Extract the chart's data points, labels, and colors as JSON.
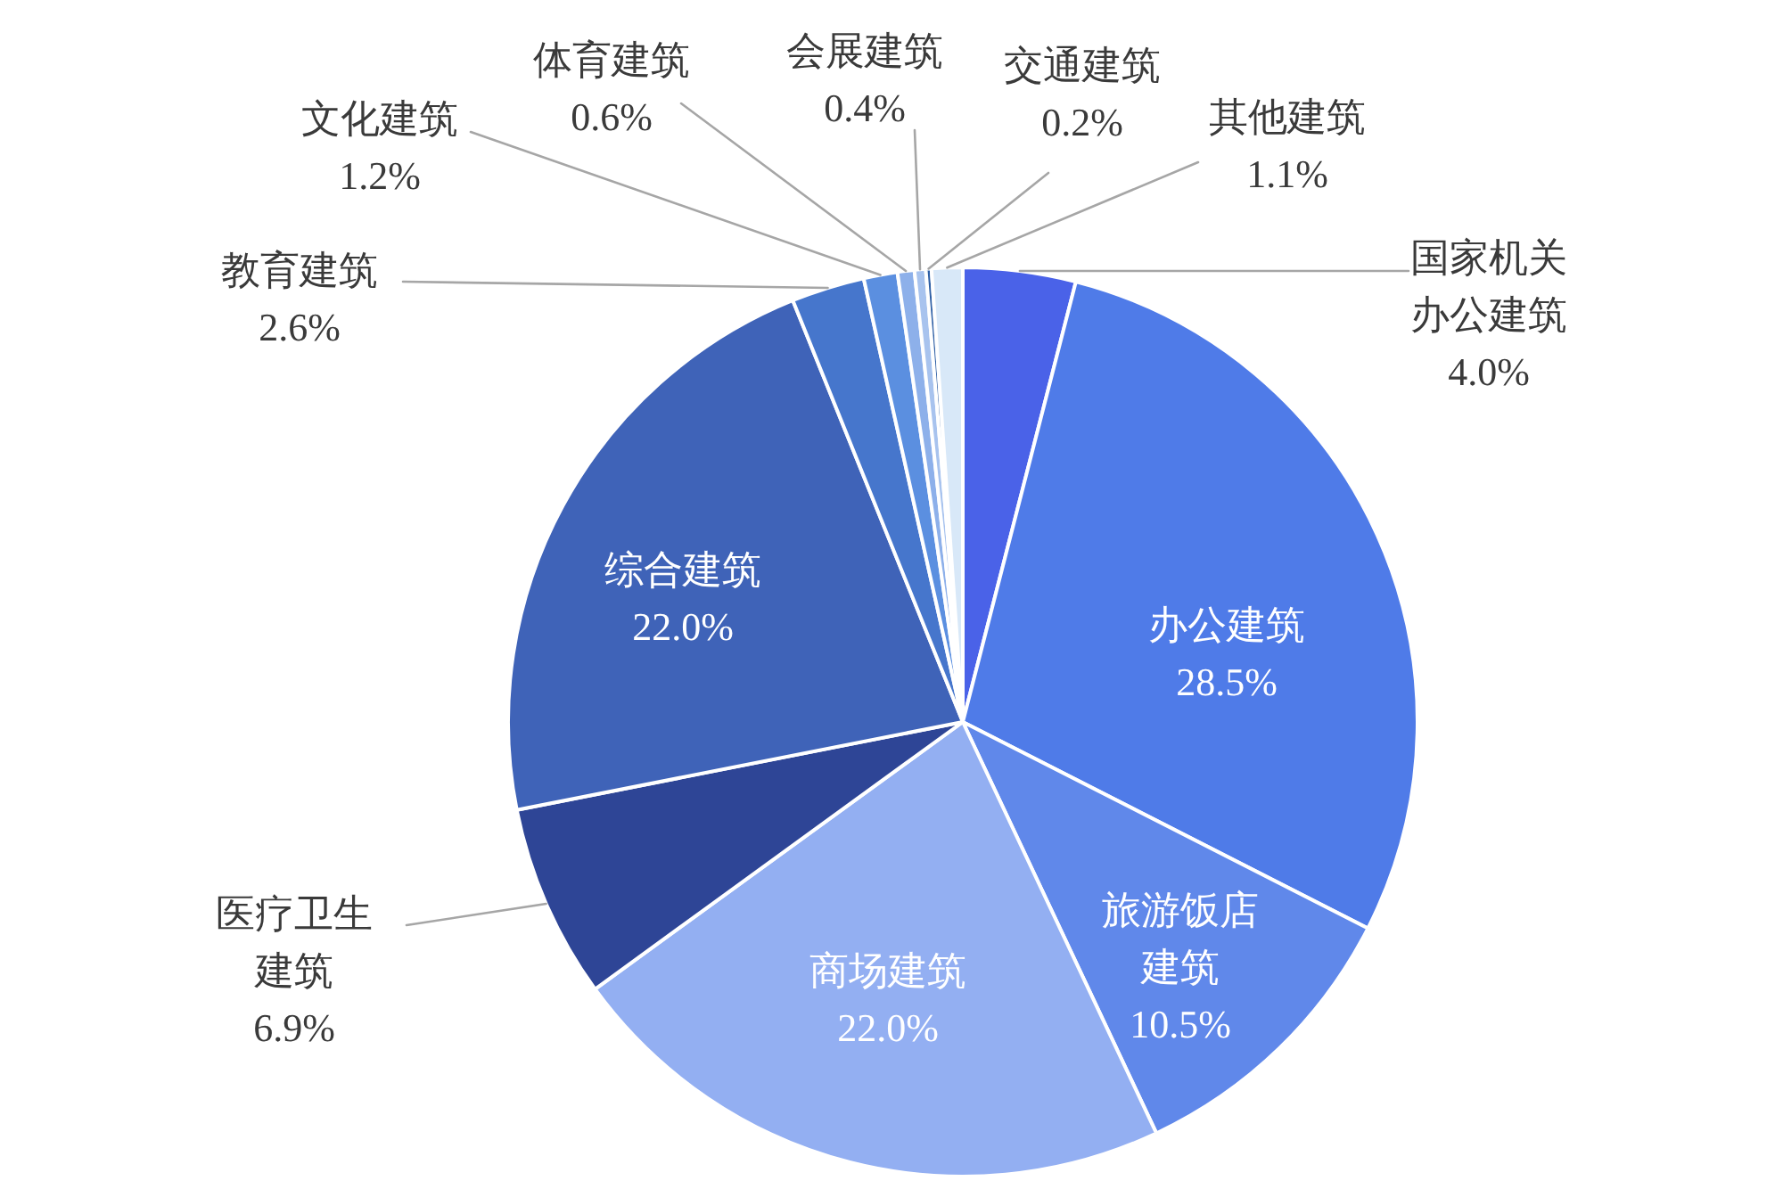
{
  "chart_data": {
    "type": "pie",
    "categories": [
      "国家机关办公建筑",
      "办公建筑",
      "旅游饭店建筑",
      "商场建筑",
      "医疗卫生建筑",
      "综合建筑",
      "教育建筑",
      "文化建筑",
      "体育建筑",
      "会展建筑",
      "交通建筑",
      "其他建筑"
    ],
    "values": [
      4.0,
      28.5,
      10.5,
      22.0,
      6.9,
      22.0,
      2.6,
      1.2,
      0.6,
      0.4,
      0.2,
      1.1
    ],
    "value_labels": [
      "4.0%",
      "28.5%",
      "10.5%",
      "22.0%",
      "6.9%",
      "22.0%",
      "2.6%",
      "1.2%",
      "0.6%",
      "0.4%",
      "0.2%",
      "1.1%"
    ],
    "colors": [
      "#4a62e8",
      "#4f7be8",
      "#6088ea",
      "#93aff2",
      "#2e4596",
      "#3f63b8",
      "#4676cc",
      "#5b8fe0",
      "#8db0ea",
      "#a8c3ee",
      "#2e5fa5",
      "#d8e8f8"
    ]
  }
}
